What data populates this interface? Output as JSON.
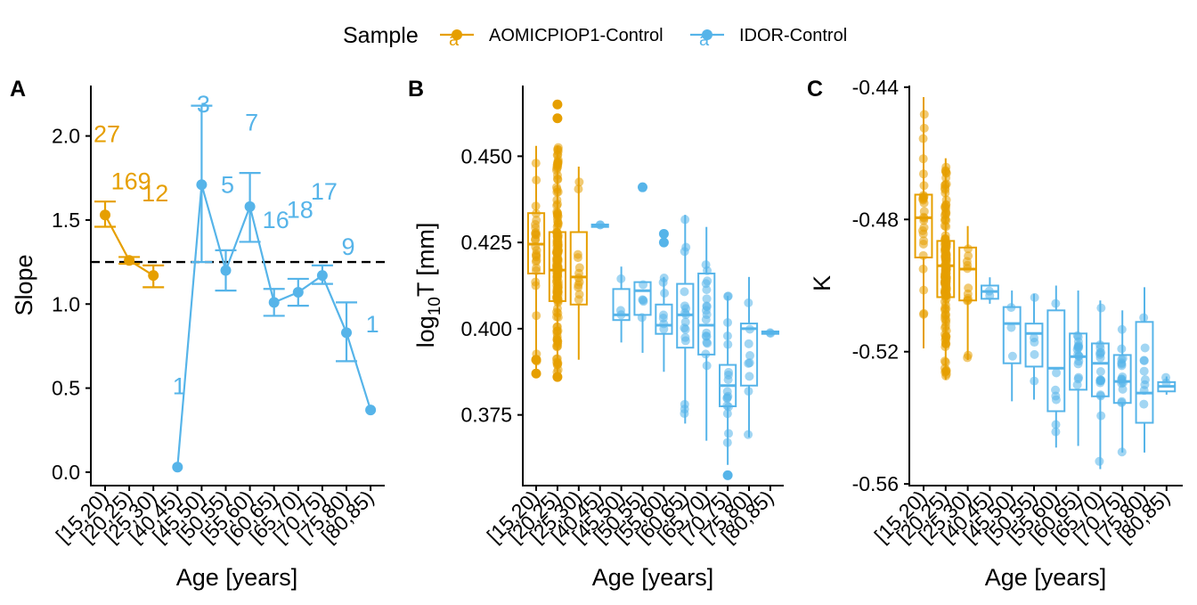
{
  "legend": {
    "title": "Sample",
    "entries": [
      {
        "label": "AOMICPIOP1-Control",
        "color": "#E69F00"
      },
      {
        "label": "IDOR-Control",
        "color": "#56B4E9"
      }
    ],
    "glyph_letter": "a"
  },
  "chart_data": [
    {
      "panel": "A",
      "type": "line",
      "xlabel": "Age [years]",
      "ylabel": "Slope",
      "categories": [
        "[15,20)",
        "[20,25)",
        "[25,30)",
        "[40,45)",
        "[45,50)",
        "[50,55)",
        "[55,60)",
        "[60,65)",
        "[65,70)",
        "[70,75)",
        "[75,80)",
        "[80,85)"
      ],
      "ylim": [
        -0.08,
        2.3
      ],
      "yticks": [
        "0.0",
        "0.5",
        "1.0",
        "1.5",
        "2.0"
      ],
      "hline": 1.25,
      "series": [
        {
          "name": "AOMICPIOP1-Control",
          "color": "#E69F00",
          "points": [
            {
              "cat": 0,
              "y": 1.53,
              "lo": 1.46,
              "hi": 1.61,
              "n": "27",
              "ny": 2.0
            },
            {
              "cat": 1,
              "y": 1.26,
              "lo": 1.24,
              "hi": 1.28,
              "n": "169",
              "ny": 1.72
            },
            {
              "cat": 2,
              "y": 1.17,
              "lo": 1.1,
              "hi": 1.23,
              "n": "12",
              "ny": 1.65
            }
          ]
        },
        {
          "name": "IDOR-Control",
          "color": "#56B4E9",
          "points": [
            {
              "cat": 3,
              "y": 0.03,
              "lo": null,
              "hi": null,
              "n": "1",
              "ny": 0.5
            },
            {
              "cat": 4,
              "y": 1.71,
              "lo": 1.25,
              "hi": 2.18,
              "n": "3",
              "ny": 2.18
            },
            {
              "cat": 5,
              "y": 1.2,
              "lo": 1.08,
              "hi": 1.32,
              "n": "5",
              "ny": 1.7
            },
            {
              "cat": 6,
              "y": 1.58,
              "lo": 1.37,
              "hi": 1.78,
              "n": "7",
              "ny": 2.07
            },
            {
              "cat": 7,
              "y": 1.01,
              "lo": 0.93,
              "hi": 1.09,
              "n": "16",
              "ny": 1.49
            },
            {
              "cat": 8,
              "y": 1.07,
              "lo": 0.99,
              "hi": 1.15,
              "n": "18",
              "ny": 1.55
            },
            {
              "cat": 9,
              "y": 1.17,
              "lo": 1.12,
              "hi": 1.23,
              "n": "17",
              "ny": 1.66
            },
            {
              "cat": 10,
              "y": 0.83,
              "lo": 0.66,
              "hi": 1.01,
              "n": "9",
              "ny": 1.33
            },
            {
              "cat": 11,
              "y": 0.37,
              "lo": null,
              "hi": null,
              "n": "1",
              "ny": 0.87
            }
          ]
        }
      ]
    },
    {
      "panel": "B",
      "type": "box",
      "xlabel": "Age [years]",
      "ylabel_main": "log",
      "ylabel_sub": "10",
      "ylabel_rest": "T [mm]",
      "categories": [
        "[15,20)",
        "[20,25)",
        "[25,30)",
        "[40,45)",
        "[45,50)",
        "[50,55)",
        "[55,60)",
        "[60,65)",
        "[65,70)",
        "[70,75)",
        "[75,80)",
        "[80,85)"
      ],
      "ylim": [
        0.3545,
        0.4705
      ],
      "yticks": [
        "0.375",
        "0.400",
        "0.425",
        "0.450"
      ],
      "boxes": [
        {
          "cat": 0,
          "color": "#E69F00",
          "min": 0.387,
          "q1": 0.416,
          "med": 0.4245,
          "q3": 0.4335,
          "max": 0.453,
          "outliers": [
            0.387,
            0.391
          ]
        },
        {
          "cat": 1,
          "color": "#E69F00",
          "min": 0.387,
          "q1": 0.408,
          "med": 0.417,
          "q3": 0.428,
          "max": 0.453,
          "outliers": [
            0.461,
            0.465,
            0.386
          ]
        },
        {
          "cat": 2,
          "color": "#E69F00",
          "min": 0.391,
          "q1": 0.407,
          "med": 0.415,
          "q3": 0.428,
          "max": 0.447,
          "outliers": []
        },
        {
          "cat": 3,
          "color": "#56B4E9",
          "min": 0.4295,
          "q1": 0.4295,
          "med": 0.4298,
          "q3": 0.4302,
          "max": 0.4302,
          "outliers": []
        },
        {
          "cat": 4,
          "color": "#56B4E9",
          "min": 0.396,
          "q1": 0.4025,
          "med": 0.404,
          "q3": 0.4115,
          "max": 0.418,
          "outliers": []
        },
        {
          "cat": 5,
          "color": "#56B4E9",
          "min": 0.393,
          "q1": 0.404,
          "med": 0.411,
          "q3": 0.4135,
          "max": 0.4135,
          "outliers": [
            0.441
          ]
        },
        {
          "cat": 6,
          "color": "#56B4E9",
          "min": 0.3875,
          "q1": 0.3985,
          "med": 0.401,
          "q3": 0.407,
          "max": 0.415,
          "outliers": [
            0.425,
            0.4275
          ]
        },
        {
          "cat": 7,
          "color": "#56B4E9",
          "min": 0.3725,
          "q1": 0.3945,
          "med": 0.404,
          "q3": 0.413,
          "max": 0.433,
          "outliers": []
        },
        {
          "cat": 8,
          "color": "#56B4E9",
          "min": 0.3675,
          "q1": 0.3925,
          "med": 0.401,
          "q3": 0.416,
          "max": 0.4295,
          "outliers": []
        },
        {
          "cat": 9,
          "color": "#56B4E9",
          "min": 0.3605,
          "q1": 0.3775,
          "med": 0.3835,
          "q3": 0.3895,
          "max": 0.4095,
          "outliers": [
            0.3575
          ]
        },
        {
          "cat": 10,
          "color": "#56B4E9",
          "min": 0.3685,
          "q1": 0.3835,
          "med": 0.4,
          "q3": 0.4015,
          "max": 0.415,
          "outliers": []
        },
        {
          "cat": 11,
          "color": "#56B4E9",
          "min": 0.3985,
          "q1": 0.3985,
          "med": 0.3988,
          "q3": 0.3992,
          "max": 0.3992,
          "outliers": []
        }
      ]
    },
    {
      "panel": "C",
      "type": "box",
      "xlabel": "Age [years]",
      "ylabel": "K",
      "categories": [
        "[15,20)",
        "[20,25)",
        "[25,30)",
        "[40,45)",
        "[45,50)",
        "[50,55)",
        "[55,60)",
        "[60,65)",
        "[65,70)",
        "[70,75)",
        "[75,80)",
        "[80,85)"
      ],
      "ylim": [
        -0.5605,
        -0.4395
      ],
      "yticks": [
        "-0.56",
        "-0.52",
        "-0.48",
        "-0.44"
      ],
      "boxes": [
        {
          "cat": 0,
          "color": "#E69F00",
          "min": -0.519,
          "q1": -0.4915,
          "med": -0.4795,
          "q3": -0.4725,
          "max": -0.443,
          "outliers": []
        },
        {
          "cat": 1,
          "color": "#E69F00",
          "min": -0.5285,
          "q1": -0.5035,
          "med": -0.494,
          "q3": -0.4865,
          "max": -0.4615,
          "outliers": []
        },
        {
          "cat": 2,
          "color": "#E69F00",
          "min": -0.5225,
          "q1": -0.5045,
          "med": -0.495,
          "q3": -0.4885,
          "max": -0.482,
          "outliers": []
        },
        {
          "cat": 3,
          "color": "#56B4E9",
          "min": -0.5055,
          "q1": -0.504,
          "med": -0.5018,
          "q3": -0.5,
          "max": -0.4975,
          "outliers": []
        },
        {
          "cat": 4,
          "color": "#56B4E9",
          "min": -0.535,
          "q1": -0.5235,
          "med": -0.5115,
          "q3": -0.5065,
          "max": -0.5015,
          "outliers": []
        },
        {
          "cat": 5,
          "color": "#56B4E9",
          "min": -0.5345,
          "q1": -0.5245,
          "med": -0.5145,
          "q3": -0.5115,
          "max": -0.5025,
          "outliers": []
        },
        {
          "cat": 6,
          "color": "#56B4E9",
          "min": -0.549,
          "q1": -0.538,
          "med": -0.525,
          "q3": -0.5075,
          "max": -0.5,
          "outliers": []
        },
        {
          "cat": 7,
          "color": "#56B4E9",
          "min": -0.5485,
          "q1": -0.5315,
          "med": -0.5215,
          "q3": -0.5145,
          "max": -0.5015,
          "outliers": []
        },
        {
          "cat": 8,
          "color": "#56B4E9",
          "min": -0.5555,
          "q1": -0.5335,
          "med": -0.5235,
          "q3": -0.5175,
          "max": -0.5045,
          "outliers": []
        },
        {
          "cat": 9,
          "color": "#56B4E9",
          "min": -0.5505,
          "q1": -0.5355,
          "med": -0.529,
          "q3": -0.521,
          "max": -0.5075,
          "outliers": []
        },
        {
          "cat": 10,
          "color": "#56B4E9",
          "min": -0.5505,
          "q1": -0.5415,
          "med": -0.5325,
          "q3": -0.511,
          "max": -0.5005,
          "outliers": []
        },
        {
          "cat": 11,
          "color": "#56B4E9",
          "min": -0.533,
          "q1": -0.532,
          "med": -0.5305,
          "q3": -0.5292,
          "max": -0.5275,
          "outliers": []
        }
      ]
    }
  ]
}
